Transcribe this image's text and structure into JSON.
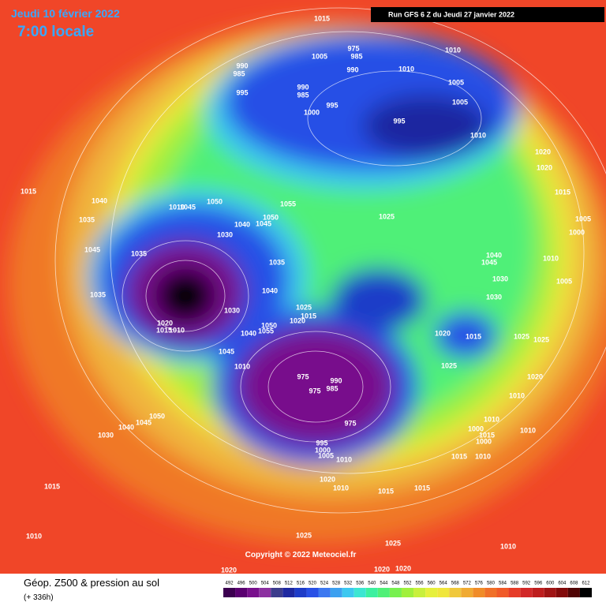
{
  "header": {
    "date": "Jeudi 10 février 2022",
    "time": "7:00 locale",
    "run": "Run GFS 6 Z du Jeudi 27 janvier 2022"
  },
  "copyright": "Copyright © 2022 Meteociel.fr",
  "footer": {
    "title": "Géop. Z500 & pression au sol",
    "subtitle": "(+ 336h)"
  },
  "isobar_labels": [
    1015,
    1005,
    990,
    985,
    995,
    975,
    985,
    990,
    990,
    985,
    995,
    1000,
    1010,
    1010,
    1005,
    1005,
    995,
    1010,
    1020,
    1020,
    1015,
    1040,
    1050,
    1045,
    1010,
    1055,
    1050,
    1045,
    1040,
    1025,
    1035,
    1030,
    1045,
    1035,
    1035,
    1040,
    1045,
    1030,
    1035,
    1040,
    1030,
    1030,
    1025,
    1015,
    1020,
    1050,
    1055,
    1020,
    1015,
    1010,
    1040,
    1020,
    1015,
    1025,
    1025,
    1045,
    1010,
    1025,
    975,
    990,
    975,
    985,
    1020,
    1010,
    1050,
    1045,
    1040,
    1030,
    975,
    1010,
    1000,
    1010,
    995,
    1000,
    1005,
    1000,
    1015,
    1010,
    1015,
    1010,
    1020,
    1010,
    1015,
    1015,
    1015,
    1010,
    1025,
    1025,
    1010,
    1020,
    1020,
    1020,
    1015,
    1005,
    1000,
    1010,
    1005
  ],
  "scale": {
    "labels": [
      492,
      496,
      500,
      504,
      508,
      512,
      516,
      520,
      524,
      528,
      532,
      536,
      540,
      544,
      548,
      552,
      556,
      560,
      564,
      568,
      572,
      576,
      580,
      584,
      588,
      592,
      596,
      600,
      604,
      608,
      612
    ],
    "colors": [
      "#3c0050",
      "#5a0070",
      "#78108c",
      "#8c30a0",
      "#3c3c8c",
      "#1e28a0",
      "#1e3cc8",
      "#2850e6",
      "#3c78f0",
      "#3ca0f0",
      "#3cc8f0",
      "#3ce6d2",
      "#3cf0a0",
      "#50f078",
      "#78f050",
      "#a0f03c",
      "#c8f03c",
      "#e6f03c",
      "#f0e63c",
      "#f0c83c",
      "#f0aa32",
      "#f08c28",
      "#f07028",
      "#f05a28",
      "#e63c28",
      "#d22828",
      "#be1e1e",
      "#a01414",
      "#820a0a",
      "#500505",
      "#000000"
    ]
  }
}
